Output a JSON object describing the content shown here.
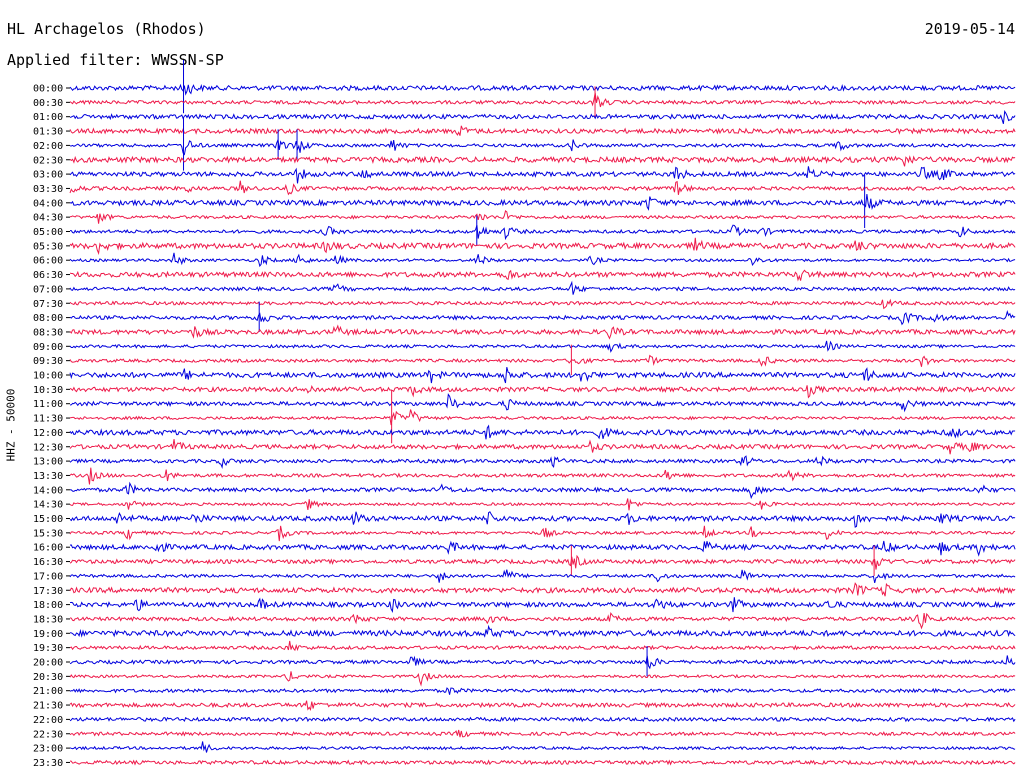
{
  "header": {
    "station": "HL Archagelos (Rhodos)",
    "date": "2019-05-14",
    "filter": "Applied filter: WWSSN-SP",
    "channel_label": "HHZ - 50000"
  },
  "colors": {
    "trace_a": "#0000dd",
    "trace_b": "#ee1a4a",
    "background": "#ffffff",
    "text": "#000000"
  },
  "chart_data": {
    "type": "line",
    "title": "HL Archagelos (Rhodos)",
    "date": "2019-05-14",
    "filter": "WWSSN-SP",
    "ylabel": "HHZ - 50000",
    "xlabel": "",
    "trace_colors": [
      "#0000dd",
      "#ee1a4a"
    ],
    "rows": [
      {
        "label": "00:00",
        "events": [
          [
            0.12,
            1.0
          ]
        ]
      },
      {
        "label": "00:30",
        "events": [
          [
            0.555,
            0.9
          ]
        ]
      },
      {
        "label": "01:00",
        "events": [
          [
            0.985,
            0.6
          ]
        ]
      },
      {
        "label": "01:30",
        "events": [
          [
            0.41,
            0.6
          ]
        ]
      },
      {
        "label": "02:00",
        "events": [
          [
            0.12,
            1.0
          ],
          [
            0.22,
            0.9
          ],
          [
            0.24,
            0.9
          ],
          [
            0.34,
            0.7
          ],
          [
            0.53,
            0.6
          ],
          [
            0.81,
            0.7
          ]
        ]
      },
      {
        "label": "02:30",
        "events": [
          [
            0.87,
            0.6
          ],
          [
            0.88,
            0.5
          ]
        ]
      },
      {
        "label": "03:00",
        "events": [
          [
            0.24,
            0.7
          ],
          [
            0.31,
            0.5
          ],
          [
            0.64,
            0.8
          ],
          [
            0.78,
            0.6
          ],
          [
            0.9,
            0.7
          ],
          [
            0.92,
            0.7
          ]
        ]
      },
      {
        "label": "03:30",
        "events": [
          [
            0.0,
            0.6
          ],
          [
            0.12,
            0.5
          ],
          [
            0.18,
            0.6
          ],
          [
            0.23,
            0.6
          ],
          [
            0.64,
            0.8
          ]
        ]
      },
      {
        "label": "04:00",
        "events": [
          [
            0.61,
            0.7
          ],
          [
            0.84,
            1.0
          ]
        ]
      },
      {
        "label": "04:30",
        "events": [
          [
            0.03,
            0.6
          ],
          [
            0.43,
            0.6
          ],
          [
            0.46,
            0.5
          ]
        ]
      },
      {
        "label": "05:00",
        "events": [
          [
            0.27,
            0.6
          ],
          [
            0.43,
            0.9
          ],
          [
            0.46,
            0.7
          ],
          [
            0.7,
            0.7
          ],
          [
            0.73,
            0.5
          ],
          [
            0.94,
            0.6
          ]
        ]
      },
      {
        "label": "05:30",
        "events": [
          [
            0.03,
            0.6
          ],
          [
            0.27,
            0.6
          ],
          [
            0.66,
            0.6
          ],
          [
            0.83,
            0.6
          ]
        ]
      },
      {
        "label": "06:00",
        "events": [
          [
            0.11,
            0.7
          ],
          [
            0.2,
            0.7
          ],
          [
            0.24,
            0.8
          ],
          [
            0.28,
            0.6
          ],
          [
            0.43,
            0.7
          ],
          [
            0.55,
            0.5
          ],
          [
            0.72,
            0.6
          ]
        ]
      },
      {
        "label": "06:30",
        "events": [
          [
            0.46,
            0.6
          ],
          [
            0.77,
            0.7
          ]
        ]
      },
      {
        "label": "07:00",
        "events": [
          [
            0.28,
            0.5
          ],
          [
            0.53,
            0.6
          ]
        ]
      },
      {
        "label": "07:30",
        "events": [
          [
            0.86,
            0.5
          ]
        ]
      },
      {
        "label": "08:00",
        "events": [
          [
            0.2,
            0.9
          ],
          [
            0.88,
            0.8
          ],
          [
            0.91,
            0.7
          ],
          [
            0.99,
            0.5
          ]
        ]
      },
      {
        "label": "08:30",
        "events": [
          [
            0.13,
            0.6
          ],
          [
            0.28,
            0.6
          ],
          [
            0.57,
            0.6
          ]
        ]
      },
      {
        "label": "09:00",
        "events": [
          [
            0.57,
            0.5
          ],
          [
            0.8,
            0.5
          ]
        ]
      },
      {
        "label": "09:30",
        "events": [
          [
            0.53,
            0.9
          ],
          [
            0.61,
            0.6
          ],
          [
            0.73,
            0.7
          ],
          [
            0.9,
            0.6
          ]
        ]
      },
      {
        "label": "10:00",
        "events": [
          [
            0.12,
            0.5
          ],
          [
            0.38,
            0.7
          ],
          [
            0.46,
            0.8
          ],
          [
            0.54,
            0.7
          ],
          [
            0.84,
            0.7
          ]
        ]
      },
      {
        "label": "10:30",
        "events": [
          [
            0.25,
            0.5
          ],
          [
            0.36,
            0.6
          ],
          [
            0.78,
            0.6
          ]
        ]
      },
      {
        "label": "11:00",
        "events": [
          [
            0.4,
            0.8
          ],
          [
            0.46,
            0.6
          ],
          [
            0.88,
            0.7
          ]
        ]
      },
      {
        "label": "11:30",
        "events": [
          [
            0.34,
            1.0
          ],
          [
            0.36,
            0.8
          ]
        ]
      },
      {
        "label": "12:00",
        "events": [
          [
            0.44,
            0.6
          ],
          [
            0.56,
            0.7
          ],
          [
            0.93,
            0.7
          ]
        ]
      },
      {
        "label": "12:30",
        "events": [
          [
            0.11,
            0.6
          ],
          [
            0.55,
            0.5
          ],
          [
            0.93,
            0.6
          ],
          [
            0.95,
            0.6
          ]
        ]
      },
      {
        "label": "13:00",
        "events": [
          [
            0.16,
            0.5
          ],
          [
            0.51,
            0.5
          ],
          [
            0.71,
            0.7
          ],
          [
            0.79,
            0.6
          ]
        ]
      },
      {
        "label": "13:30",
        "events": [
          [
            0.02,
            0.8
          ],
          [
            0.1,
            0.6
          ],
          [
            0.63,
            0.6
          ],
          [
            0.76,
            0.6
          ]
        ]
      },
      {
        "label": "14:00",
        "events": [
          [
            0.06,
            0.7
          ],
          [
            0.39,
            0.6
          ],
          [
            0.72,
            0.8
          ],
          [
            0.96,
            0.6
          ]
        ]
      },
      {
        "label": "14:30",
        "events": [
          [
            0.06,
            0.6
          ],
          [
            0.25,
            0.6
          ],
          [
            0.59,
            0.7
          ],
          [
            0.73,
            0.5
          ]
        ]
      },
      {
        "label": "15:00",
        "events": [
          [
            0.05,
            0.6
          ],
          [
            0.13,
            0.6
          ],
          [
            0.3,
            0.7
          ],
          [
            0.44,
            0.8
          ],
          [
            0.59,
            0.5
          ],
          [
            0.83,
            0.8
          ],
          [
            0.92,
            0.5
          ]
        ]
      },
      {
        "label": "15:30",
        "events": [
          [
            0.06,
            0.7
          ],
          [
            0.22,
            0.8
          ],
          [
            0.5,
            0.6
          ],
          [
            0.67,
            0.6
          ],
          [
            0.72,
            0.5
          ],
          [
            0.8,
            0.6
          ]
        ]
      },
      {
        "label": "16:00",
        "events": [
          [
            0.09,
            0.7
          ],
          [
            0.4,
            0.6
          ],
          [
            0.67,
            0.6
          ],
          [
            0.86,
            0.6
          ],
          [
            0.92,
            0.6
          ],
          [
            0.96,
            0.6
          ]
        ]
      },
      {
        "label": "16:30",
        "events": [
          [
            0.53,
            0.9
          ],
          [
            0.85,
            0.9
          ]
        ]
      },
      {
        "label": "17:00",
        "events": [
          [
            0.39,
            0.6
          ],
          [
            0.46,
            0.8
          ],
          [
            0.62,
            0.6
          ],
          [
            0.71,
            0.6
          ],
          [
            0.85,
            0.7
          ]
        ]
      },
      {
        "label": "17:30",
        "events": [
          [
            0.83,
            0.7
          ],
          [
            0.86,
            0.6
          ]
        ]
      },
      {
        "label": "18:00",
        "events": [
          [
            0.07,
            0.6
          ],
          [
            0.2,
            0.5
          ],
          [
            0.34,
            0.6
          ],
          [
            0.62,
            0.7
          ],
          [
            0.7,
            0.7
          ],
          [
            0.8,
            0.5
          ]
        ]
      },
      {
        "label": "18:30",
        "events": [
          [
            0.3,
            0.6
          ],
          [
            0.44,
            0.5
          ],
          [
            0.57,
            0.5
          ],
          [
            0.89,
            0.6
          ],
          [
            0.9,
            0.6
          ]
        ]
      },
      {
        "label": "19:00",
        "events": [
          [
            0.44,
            0.6
          ]
        ]
      },
      {
        "label": "19:30",
        "events": [
          [
            0.23,
            0.7
          ]
        ]
      },
      {
        "label": "20:00",
        "events": [
          [
            0.36,
            0.6
          ],
          [
            0.61,
            0.9
          ],
          [
            0.99,
            0.6
          ]
        ]
      },
      {
        "label": "20:30",
        "events": [
          [
            0.23,
            0.6
          ],
          [
            0.37,
            0.8
          ]
        ]
      },
      {
        "label": "21:00",
        "events": [
          [
            0.4,
            0.5
          ]
        ]
      },
      {
        "label": "21:30",
        "events": [
          [
            0.25,
            0.6
          ]
        ]
      },
      {
        "label": "22:00",
        "events": []
      },
      {
        "label": "22:30",
        "events": [
          [
            0.41,
            0.5
          ]
        ]
      },
      {
        "label": "23:00",
        "events": [
          [
            0.14,
            0.6
          ]
        ]
      },
      {
        "label": "23:30",
        "events": []
      }
    ]
  }
}
